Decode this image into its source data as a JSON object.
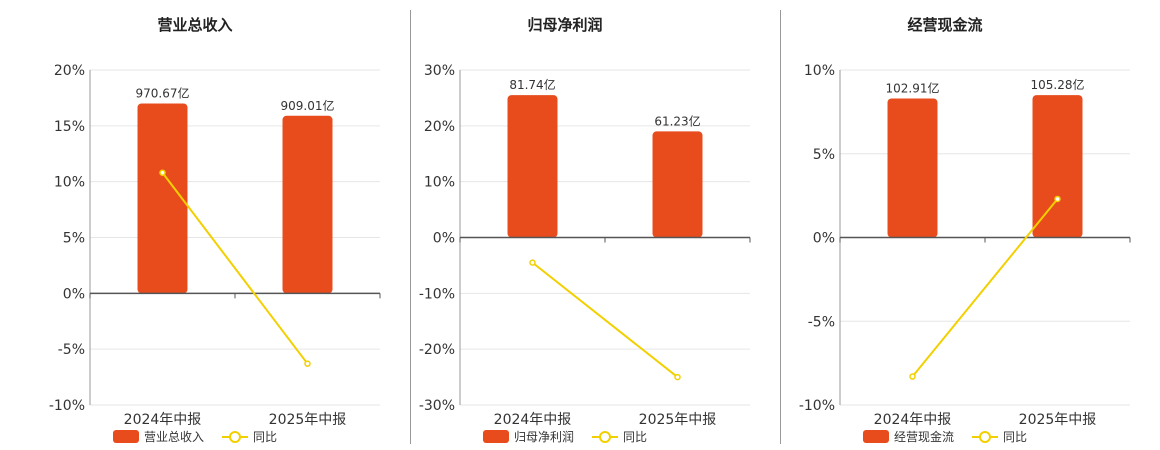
{
  "colors": {
    "bar": "#e84c1c",
    "line": "#f2d000",
    "axis": "#555555",
    "grid": "#e6e6e6"
  },
  "legend": {
    "yoy": "同比"
  },
  "chart_data": [
    {
      "type": "bar",
      "title": "营业总收入",
      "categories": [
        "2024年中报",
        "2025年中报"
      ],
      "series": [
        {
          "name": "营业总收入",
          "kind": "bar",
          "values": [
            17.0,
            15.9
          ],
          "labels": [
            "970.67亿",
            "909.01亿"
          ]
        },
        {
          "name": "同比",
          "kind": "line",
          "values": [
            10.8,
            -6.3
          ]
        }
      ],
      "ylim": [
        -10,
        20
      ],
      "yticks": [
        20,
        15,
        10,
        5,
        0,
        -5,
        -10
      ],
      "ytick_labels": [
        "20%",
        "15%",
        "10%",
        "5%",
        "0%",
        "-5%",
        "-10%"
      ],
      "grid": true,
      "legend_position": "bottom"
    },
    {
      "type": "bar",
      "title": "归母净利润",
      "categories": [
        "2024年中报",
        "2025年中报"
      ],
      "series": [
        {
          "name": "归母净利润",
          "kind": "bar",
          "values": [
            25.5,
            19.0
          ],
          "labels": [
            "81.74亿",
            "61.23亿"
          ]
        },
        {
          "name": "同比",
          "kind": "line",
          "values": [
            -4.5,
            -25.0
          ]
        }
      ],
      "ylim": [
        -30,
        30
      ],
      "yticks": [
        30,
        20,
        10,
        0,
        -10,
        -20,
        -30
      ],
      "ytick_labels": [
        "30%",
        "20%",
        "10%",
        "0%",
        "-10%",
        "-20%",
        "-30%"
      ],
      "grid": true,
      "legend_position": "bottom"
    },
    {
      "type": "bar",
      "title": "经营现金流",
      "categories": [
        "2024年中报",
        "2025年中报"
      ],
      "series": [
        {
          "name": "经营现金流",
          "kind": "bar",
          "values": [
            8.3,
            8.5
          ],
          "labels": [
            "102.91亿",
            "105.28亿"
          ]
        },
        {
          "name": "同比",
          "kind": "line",
          "values": [
            -8.3,
            2.3
          ]
        }
      ],
      "ylim": [
        -10,
        10
      ],
      "yticks": [
        10,
        5,
        0,
        -5,
        -10
      ],
      "ytick_labels": [
        "10%",
        "5%",
        "0%",
        "-5%",
        "-10%"
      ],
      "grid": true,
      "legend_position": "bottom"
    }
  ]
}
